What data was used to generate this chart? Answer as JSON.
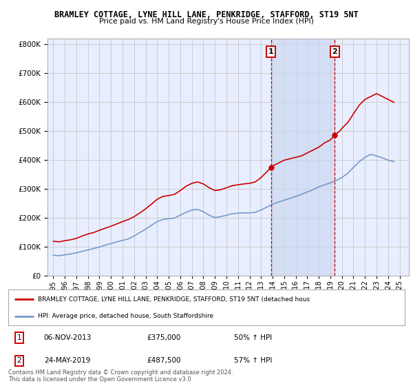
{
  "title": "BRAMLEY COTTAGE, LYNE HILL LANE, PENKRIDGE, STAFFORD, ST19 5NT",
  "subtitle": "Price paid vs. HM Land Registry's House Price Index (HPI)",
  "background_color": "#ffffff",
  "plot_bg_color": "#e8eeff",
  "grid_color": "#cccccc",
  "red_line_color": "#cc0000",
  "blue_line_color": "#7799cc",
  "vline_color": "#cc0000",
  "legend_label_red": "BRAMLEY COTTAGE, LYNE HILL LANE, PENKRIDGE, STAFFORD, ST19 5NT (detached hous",
  "legend_label_blue": "HPI: Average price, detached house, South Staffordshire",
  "transaction1": {
    "label": "1",
    "date_x": 2013.85,
    "price": 375000,
    "percent": "50%",
    "date_str": "06-NOV-2013"
  },
  "transaction2": {
    "label": "2",
    "date_x": 2019.38,
    "price": 487500,
    "percent": "57%",
    "date_str": "24-MAY-2019"
  },
  "footer1": "Contains HM Land Registry data © Crown copyright and database right 2024.",
  "footer2": "This data is licensed under the Open Government Licence v3.0.",
  "ylim": [
    0,
    820000
  ],
  "xlim_start": 1994.5,
  "xlim_end": 2025.8,
  "red_line_x": [
    1995.0,
    1995.5,
    1996.0,
    1996.5,
    1997.0,
    1997.5,
    1998.0,
    1998.5,
    1999.0,
    1999.5,
    2000.0,
    2000.5,
    2001.0,
    2001.5,
    2002.0,
    2002.5,
    2003.0,
    2003.5,
    2004.0,
    2004.5,
    2005.0,
    2005.5,
    2006.0,
    2006.5,
    2007.0,
    2007.5,
    2008.0,
    2008.5,
    2009.0,
    2009.5,
    2010.0,
    2010.5,
    2011.0,
    2011.5,
    2012.0,
    2012.5,
    2013.0,
    2013.5,
    2013.85,
    2014.0,
    2014.5,
    2015.0,
    2015.5,
    2016.0,
    2016.5,
    2017.0,
    2017.5,
    2018.0,
    2018.5,
    2019.0,
    2019.38,
    2019.8,
    2020.0,
    2020.5,
    2021.0,
    2021.5,
    2022.0,
    2022.5,
    2023.0,
    2023.5,
    2024.0,
    2024.5
  ],
  "red_line_y": [
    120000,
    118000,
    122000,
    125000,
    130000,
    138000,
    145000,
    150000,
    158000,
    165000,
    172000,
    180000,
    188000,
    195000,
    205000,
    218000,
    232000,
    248000,
    265000,
    275000,
    278000,
    282000,
    295000,
    310000,
    320000,
    325000,
    318000,
    305000,
    295000,
    298000,
    305000,
    312000,
    315000,
    318000,
    320000,
    325000,
    340000,
    360000,
    375000,
    380000,
    390000,
    400000,
    405000,
    410000,
    415000,
    425000,
    435000,
    445000,
    460000,
    470000,
    487500,
    500000,
    510000,
    530000,
    560000,
    590000,
    610000,
    620000,
    630000,
    620000,
    610000,
    600000
  ],
  "blue_line_x": [
    1995.0,
    1995.5,
    1996.0,
    1996.5,
    1997.0,
    1997.5,
    1998.0,
    1998.5,
    1999.0,
    1999.5,
    2000.0,
    2000.5,
    2001.0,
    2001.5,
    2002.0,
    2002.5,
    2003.0,
    2003.5,
    2004.0,
    2004.5,
    2005.0,
    2005.5,
    2006.0,
    2006.5,
    2007.0,
    2007.5,
    2008.0,
    2008.5,
    2009.0,
    2009.5,
    2010.0,
    2010.5,
    2011.0,
    2011.5,
    2012.0,
    2012.5,
    2013.0,
    2013.5,
    2014.0,
    2014.5,
    2015.0,
    2015.5,
    2016.0,
    2016.5,
    2017.0,
    2017.5,
    2018.0,
    2018.5,
    2019.0,
    2019.5,
    2020.0,
    2020.5,
    2021.0,
    2021.5,
    2022.0,
    2022.5,
    2023.0,
    2023.5,
    2024.0,
    2024.5
  ],
  "blue_line_y": [
    72000,
    70000,
    73000,
    76000,
    80000,
    85000,
    90000,
    95000,
    100000,
    107000,
    112000,
    118000,
    123000,
    128000,
    138000,
    150000,
    162000,
    175000,
    188000,
    195000,
    198000,
    200000,
    210000,
    220000,
    228000,
    230000,
    222000,
    210000,
    202000,
    205000,
    210000,
    215000,
    217000,
    218000,
    218000,
    220000,
    228000,
    238000,
    248000,
    255000,
    262000,
    268000,
    275000,
    282000,
    290000,
    298000,
    308000,
    315000,
    322000,
    330000,
    340000,
    355000,
    375000,
    395000,
    410000,
    420000,
    415000,
    408000,
    400000,
    395000
  ]
}
